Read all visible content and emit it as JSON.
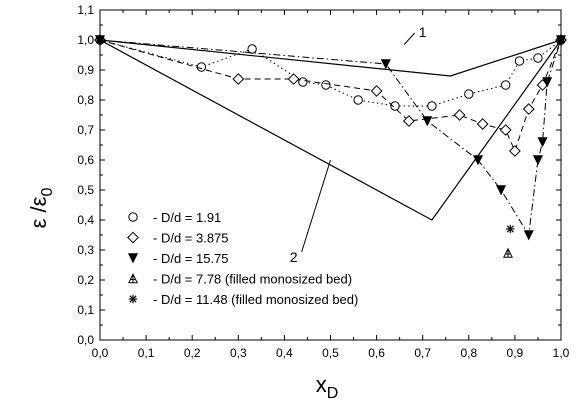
{
  "chart_data": {
    "type": "line",
    "xlabel": "x",
    "xlabel_sub": "D",
    "ylabel": "ε /ε",
    "ylabel_sub": "0",
    "xlim": [
      0,
      1
    ],
    "ylim": [
      0,
      1.1
    ],
    "x_ticks": [
      0.0,
      0.1,
      0.2,
      0.3,
      0.4,
      0.5,
      0.6,
      0.7,
      0.8,
      0.9,
      1.0
    ],
    "x_tick_labels": [
      "0,0",
      "0,1",
      "0,2",
      "0,3",
      "0,4",
      "0,5",
      "0,6",
      "0,7",
      "0,8",
      "0,9",
      "1,0"
    ],
    "y_ticks": [
      0.0,
      0.1,
      0.2,
      0.3,
      0.4,
      0.5,
      0.6,
      0.7,
      0.8,
      0.9,
      1.0,
      1.1
    ],
    "y_tick_labels": [
      "0,0",
      "0,1",
      "0,2",
      "0,3",
      "0,4",
      "0,5",
      "0,6",
      "0,7",
      "0,8",
      "0,9",
      "1,0",
      "1,1"
    ],
    "grid": false,
    "legend_position": "bottom-left",
    "series": [
      {
        "name": "- D/d = 1.91",
        "marker": "circle-open",
        "line": "dotted",
        "x": [
          0.0,
          0.22,
          0.33,
          0.44,
          0.49,
          0.56,
          0.64,
          0.72,
          0.8,
          0.88,
          0.91,
          0.95,
          1.0
        ],
        "y": [
          1.0,
          0.91,
          0.97,
          0.86,
          0.85,
          0.8,
          0.78,
          0.78,
          0.82,
          0.85,
          0.93,
          0.94,
          1.0
        ]
      },
      {
        "name": "- D/d = 3.875",
        "marker": "diamond-open",
        "line": "dashed",
        "x": [
          0.0,
          0.3,
          0.42,
          0.6,
          0.67,
          0.78,
          0.83,
          0.88,
          0.9,
          0.93,
          0.96,
          1.0
        ],
        "y": [
          1.0,
          0.87,
          0.87,
          0.83,
          0.73,
          0.75,
          0.72,
          0.7,
          0.63,
          0.77,
          0.85,
          1.0
        ]
      },
      {
        "name": "- D/d = 15.75",
        "marker": "triangle-down-filled",
        "line": "dash-dot",
        "x": [
          0.0,
          0.62,
          0.71,
          0.82,
          0.87,
          0.93,
          0.95,
          0.96,
          0.97,
          1.0
        ],
        "y": [
          1.0,
          0.92,
          0.73,
          0.6,
          0.5,
          0.35,
          0.6,
          0.66,
          0.86,
          1.0
        ]
      },
      {
        "name": "- D/d = 7.78 (filled monosized bed)",
        "marker": "triangle-up-hatched",
        "line": "none",
        "x": [
          0.885
        ],
        "y": [
          0.29
        ]
      },
      {
        "name": "- D/d = 11.48 (filled monosized bed)",
        "marker": "asterisk",
        "line": "none",
        "x": [
          0.89
        ],
        "y": [
          0.37
        ]
      }
    ],
    "reference_curves": [
      {
        "label": "1",
        "line": "solid",
        "x": [
          0.0,
          0.76,
          1.0
        ],
        "y": [
          1.0,
          0.88,
          1.0
        ],
        "label_at": [
          0.7,
          1.01
        ]
      },
      {
        "label": "2",
        "line": "solid",
        "x": [
          0.0,
          0.72,
          1.0
        ],
        "y": [
          1.0,
          0.4,
          1.0
        ],
        "label_at": [
          0.42,
          0.26
        ]
      }
    ]
  }
}
